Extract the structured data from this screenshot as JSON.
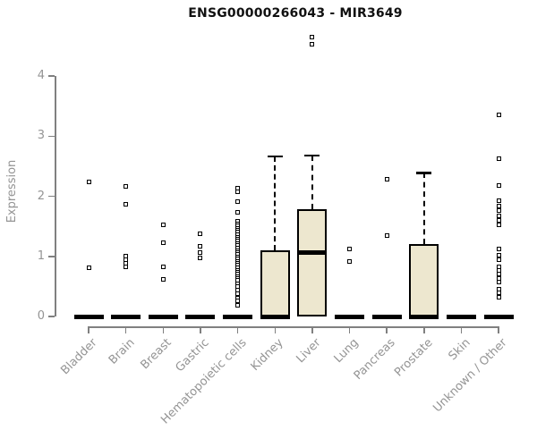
{
  "chart_data": {
    "type": "boxplot",
    "title": "ENSG00000266043 - MIR3649",
    "ylabel": "Expression",
    "xlabel": "",
    "ylim": [
      0,
      4
    ],
    "yticks": [
      0,
      1,
      2,
      3,
      4
    ],
    "grid": false,
    "legend": "none",
    "colors": {
      "box_fill": "#EDE7CF",
      "box_border": "#000000",
      "median": "#000000",
      "axis": "#808080",
      "tick_text": "#949494",
      "title_text": "#111111",
      "background": "#ffffff"
    },
    "categories": [
      "Bladder",
      "Brain",
      "Breast",
      "Gastric",
      "Hematopoietic cells",
      "Kidney",
      "Liver",
      "Lung",
      "Pancreas",
      "Prostate",
      "Skin",
      "Unknown / Other"
    ],
    "boxes": [
      {
        "category": "Bladder",
        "q1": 0,
        "median": 0,
        "q3": 0,
        "whisker_low": 0,
        "whisker_high": 0,
        "outliers": [
          2.24,
          0.81
        ]
      },
      {
        "category": "Brain",
        "q1": 0,
        "median": 0,
        "q3": 0,
        "whisker_low": 0,
        "whisker_high": 0,
        "outliers": [
          2.17,
          1.86,
          1.0,
          0.94,
          0.88,
          0.82
        ]
      },
      {
        "category": "Breast",
        "q1": 0,
        "median": 0,
        "q3": 0,
        "whisker_low": 0,
        "whisker_high": 0,
        "outliers": [
          1.52,
          1.22,
          0.83,
          0.61
        ]
      },
      {
        "category": "Gastric",
        "q1": 0,
        "median": 0,
        "q3": 0,
        "whisker_low": 0,
        "whisker_high": 0,
        "outliers": [
          1.37,
          1.17,
          1.06,
          0.97
        ]
      },
      {
        "category": "Hematopoietic cells",
        "q1": 0,
        "median": 0,
        "q3": 0,
        "whisker_low": 0,
        "whisker_high": 0,
        "outliers": [
          2.14,
          2.08,
          1.91,
          1.73,
          1.58,
          1.54,
          1.51,
          1.47,
          1.43,
          1.4,
          1.36,
          1.32,
          1.29,
          1.25,
          1.21,
          1.18,
          1.14,
          1.1,
          1.07,
          1.03,
          0.99,
          0.96,
          0.92,
          0.88,
          0.85,
          0.81,
          0.77,
          0.74,
          0.7,
          0.66,
          0.63,
          0.6,
          0.55,
          0.5,
          0.44,
          0.38,
          0.31,
          0.26,
          0.19
        ]
      },
      {
        "category": "Kidney",
        "q1": 0,
        "median": 0,
        "q3": 1.1,
        "whisker_low": 0,
        "whisker_high": 2.66,
        "outliers": []
      },
      {
        "category": "Liver",
        "q1": 0,
        "median": 1.07,
        "q3": 1.78,
        "whisker_low": 0,
        "whisker_high": 2.68,
        "outliers": [
          4.65,
          4.53
        ]
      },
      {
        "category": "Lung",
        "q1": 0,
        "median": 0,
        "q3": 0,
        "whisker_low": 0,
        "whisker_high": 0,
        "outliers": [
          1.13,
          0.91
        ]
      },
      {
        "category": "Pancreas",
        "q1": 0,
        "median": 0,
        "q3": 0,
        "whisker_low": 0,
        "whisker_high": 0,
        "outliers": [
          2.28,
          1.34
        ]
      },
      {
        "category": "Prostate",
        "q1": 0,
        "median": 0,
        "q3": 1.2,
        "whisker_low": 0,
        "whisker_high": 2.39,
        "outliers": []
      },
      {
        "category": "Skin",
        "q1": 0,
        "median": 0,
        "q3": 0,
        "whisker_low": 0,
        "whisker_high": 0,
        "outliers": []
      },
      {
        "category": "Unknown / Other",
        "q1": 0,
        "median": 0,
        "q3": 0,
        "whisker_low": 0,
        "whisker_high": 0,
        "outliers": [
          3.35,
          2.63,
          2.18,
          1.92,
          1.84,
          1.76,
          1.68,
          1.6,
          1.52,
          1.13,
          1.02,
          0.94,
          0.83,
          0.77,
          0.7,
          0.63,
          0.57,
          0.46,
          0.39,
          0.32
        ]
      }
    ]
  }
}
